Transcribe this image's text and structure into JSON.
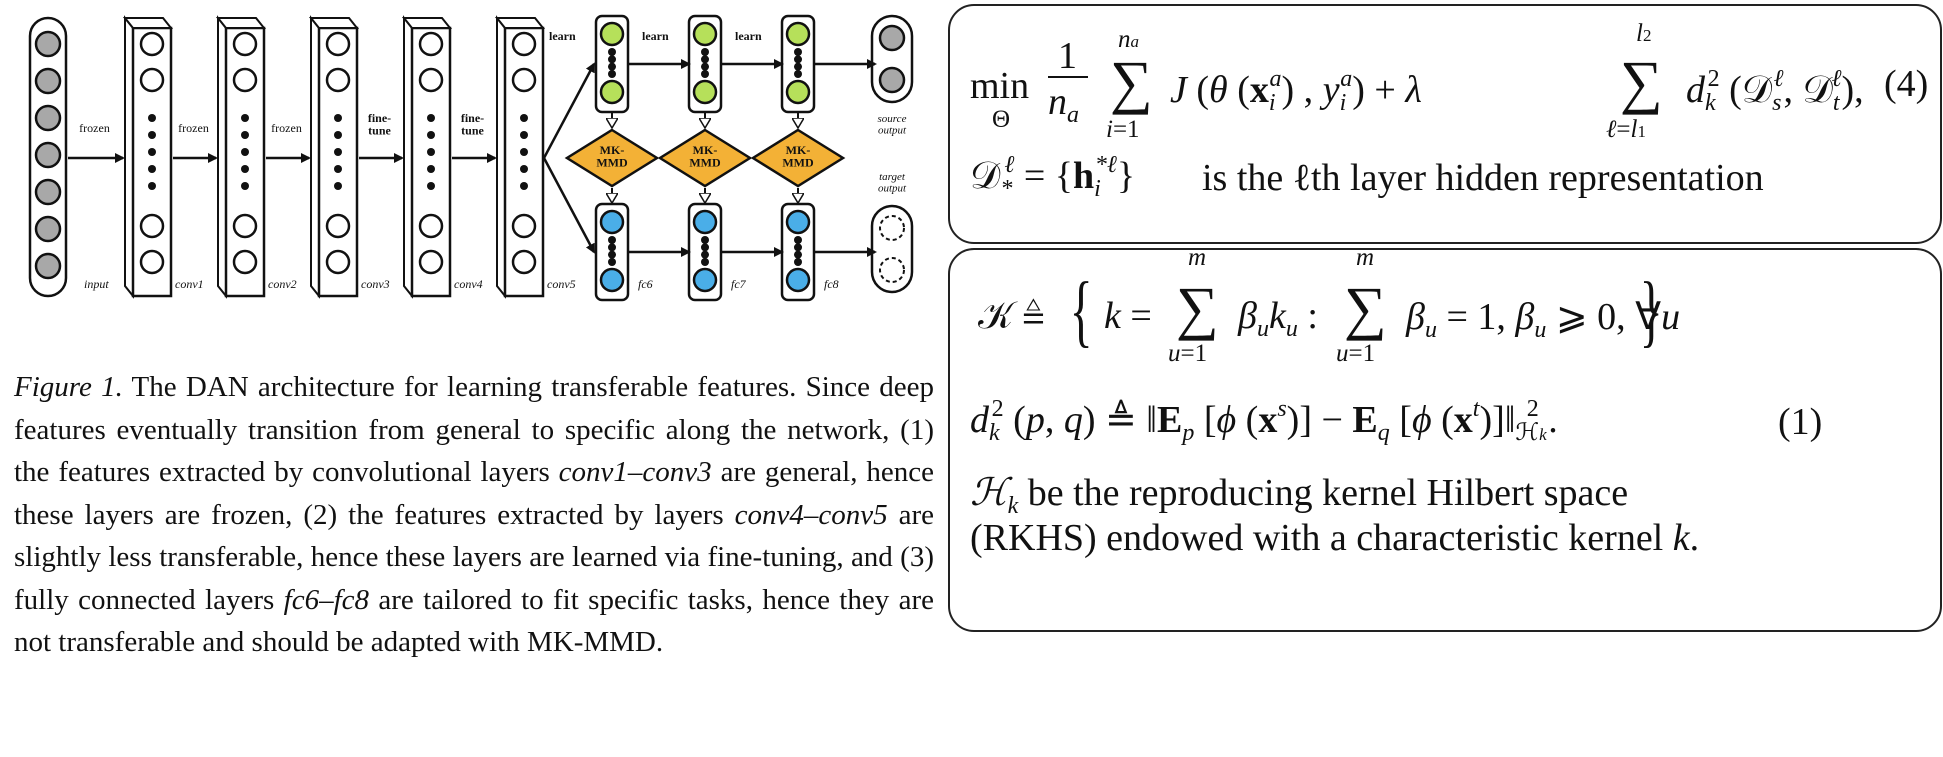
{
  "figure": {
    "layer_labels": [
      "input",
      "conv1",
      "conv2",
      "conv3",
      "conv4",
      "conv5",
      "fc6",
      "fc7",
      "fc8"
    ],
    "conv_arrow_labels": [
      "frozen",
      "frozen",
      "frozen",
      "fine-\ntune",
      "fine-\ntune"
    ],
    "learn_label": "learn",
    "mmd_label": "MK-\nMMD",
    "source_output_label": "source\noutput",
    "target_output_label": "target\noutput",
    "colors": {
      "gray": "#a8a8a8",
      "green": "#b6e05a",
      "blue": "#4aaee8",
      "orange": "#f3b136"
    }
  },
  "caption": {
    "label": "Figure 1.",
    "text_1": " The DAN architecture for learning transferable features. Since deep features eventually transition from general to specific along the network, (1) the features extracted by convolutional layers ",
    "range_1": "conv1–conv3",
    "text_2": " are general, hence these layers are frozen, (2) the features extracted by layers ",
    "range_2": "conv4–conv5",
    "text_3": " are slightly less transferable, hence these layers are learned via fine-tuning, and (3) fully connected layers ",
    "range_3": "fc6–fc8",
    "text_4": " are tailored to fit specific tasks, hence they are not transferable and should be adapted with MK-MMD."
  },
  "panel1": {
    "equation_number": "(4)",
    "hidden_text": "is  the ℓth layer hidden representation"
  },
  "panel2": {
    "equation_number": "(1)",
    "rkhs_line1": " be  the  reproducing  kernel  Hilbert  space",
    "rkhs_line2": "(RKHS) endowed with a characteristic kernel "
  }
}
